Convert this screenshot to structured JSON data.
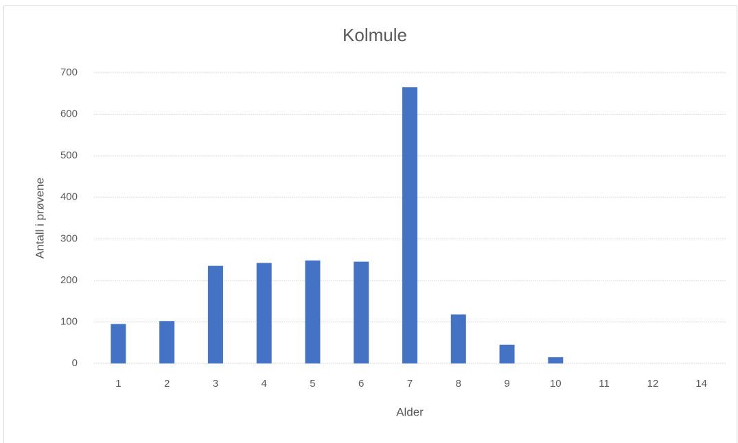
{
  "chart_data": {
    "type": "bar",
    "title": "Kolmule",
    "x_label": "Alder",
    "y_label": "Antall i prøvene",
    "categories": [
      "1",
      "2",
      "3",
      "4",
      "5",
      "6",
      "7",
      "8",
      "9",
      "10",
      "11",
      "12",
      "14"
    ],
    "values": [
      95,
      102,
      235,
      242,
      248,
      245,
      665,
      118,
      45,
      15,
      0,
      0,
      0
    ],
    "color": "#4472c4",
    "ylim": [
      0,
      700
    ],
    "yticks": [
      0,
      100,
      200,
      300,
      400,
      500,
      600,
      700
    ],
    "grid": true
  }
}
